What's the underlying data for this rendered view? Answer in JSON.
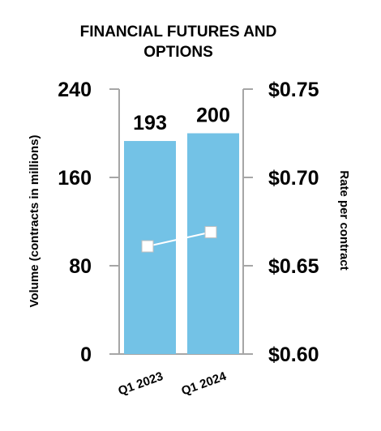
{
  "chart_data": {
    "type": "bar",
    "title": "FINANCIAL FUTURES AND\nOPTIONS",
    "categories": [
      "Q1 2023",
      "Q1 2024"
    ],
    "series": [
      {
        "type": "bar",
        "axis": "left",
        "values": [
          193,
          200
        ],
        "data_labels": [
          "193",
          "200"
        ],
        "color": "#73C2E6"
      },
      {
        "type": "line",
        "axis": "right",
        "values": [
          0.661,
          0.669
        ],
        "color": "#ffffff"
      }
    ],
    "ylabel": "Volume (contracts in millions)",
    "y2label": "Rate per contract",
    "ylim": [
      0,
      240
    ],
    "y2lim": [
      0.6,
      0.75
    ],
    "yticks": [
      {
        "value": 0,
        "label": "0"
      },
      {
        "value": 80,
        "label": "80"
      },
      {
        "value": 160,
        "label": "160"
      },
      {
        "value": 240,
        "label": "240"
      }
    ],
    "y2ticks": [
      {
        "value": 0.6,
        "label": "$0.60"
      },
      {
        "value": 0.65,
        "label": "$0.65"
      },
      {
        "value": 0.7,
        "label": "$0.70"
      },
      {
        "value": 0.75,
        "label": "$0.75"
      }
    ],
    "grid": false,
    "legend": "none",
    "axis_color": "#a6a6a6",
    "text_color": "#000000"
  }
}
